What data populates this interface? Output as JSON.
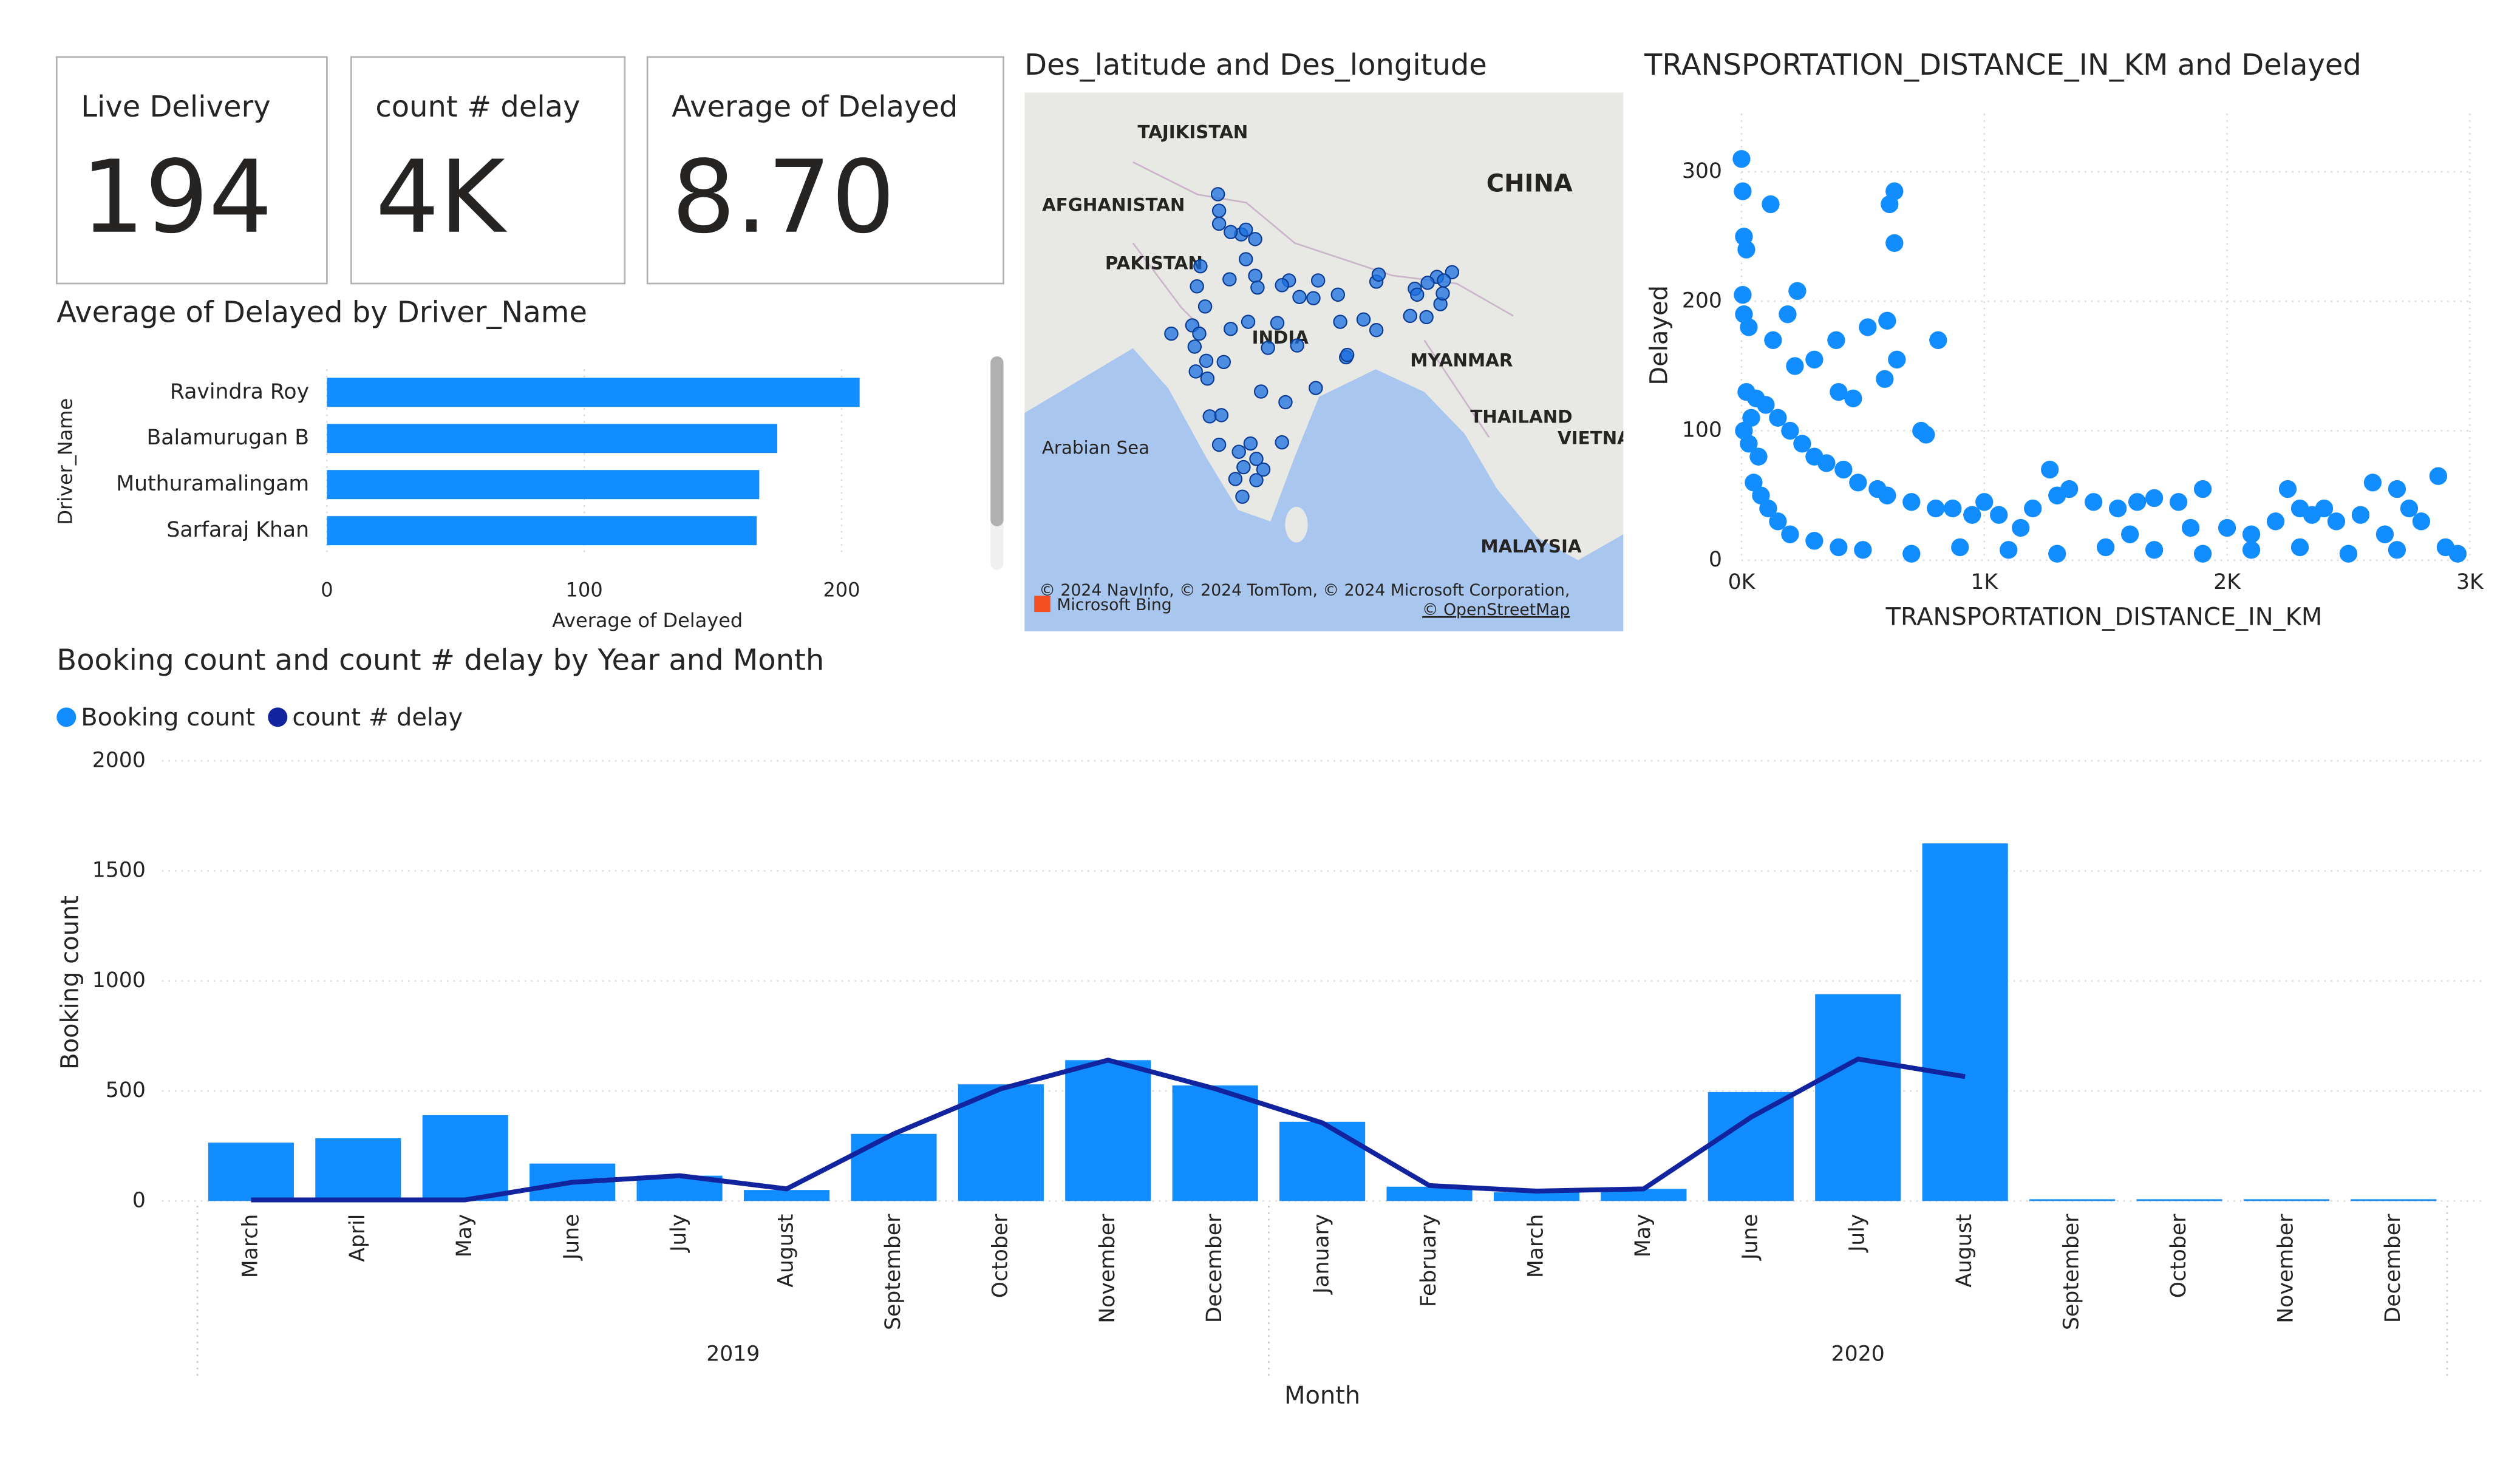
{
  "cards": [
    {
      "label": "Live Delivery",
      "value": "194"
    },
    {
      "label": "count # delay",
      "value": "4K"
    },
    {
      "label": "Average of Delayed",
      "value": "8.70"
    }
  ],
  "chart_data": [
    {
      "type": "hbar",
      "title": "Average of Delayed by Driver_Name",
      "categories": [
        "Ravindra Roy",
        "Balamurugan B",
        "Muthuramalingam",
        "Sarfaraj Khan"
      ],
      "values": [
        207,
        175,
        168,
        167
      ],
      "color": "#118dff",
      "xlabel": "Average of Delayed",
      "ylabel": "Driver_Name",
      "xlim": [
        0,
        245
      ],
      "xticks": [
        0,
        100,
        200
      ],
      "grid": true
    },
    {
      "type": "map",
      "title": "Des_latitude and Des_longitude",
      "x": [
        77.2,
        75.8,
        80.9,
        80.3,
        78.0,
        76.8,
        74.9,
        75.9,
        78.0,
        77.2,
        74.8,
        74.9,
        72.6,
        72.8,
        73.2,
        70.8,
        72.9,
        73.9,
        79.1,
        73.8,
        75.3,
        75.9,
        77.4,
        79.9,
        81.6,
        85.1,
        85.3,
        88.4,
        85.8,
        91.7,
        91.9,
        93.9,
        91.3,
        88.4,
        94.9,
        78.5,
        80.6,
        83.2,
        77.6,
        80.3,
        77.0,
        78.1,
        76.3,
        76.9,
        74.9,
        74.1,
        75.1,
        76.6,
        78.1,
        78.7,
        83.0,
        83.4,
        81.8,
        78.2,
        73.0,
        73.7,
        73.3,
        87.3,
        85.9,
        88.6,
        93.6,
        94.1,
        92.7,
        94.2,
        92.8
      ],
      "y": [
        28.6,
        26.9,
        26.8,
        26.4,
        27.2,
        30.7,
        31.6,
        30.9,
        30.3,
        31.1,
        34.1,
        32.7,
        23.0,
        21.2,
        22.3,
        22.3,
        19.1,
        18.5,
        21.1,
        20.0,
        19.9,
        22.7,
        23.3,
        23.2,
        21.3,
        25.6,
        23.3,
        22.6,
        20.3,
        26.1,
        25.6,
        24.8,
        23.8,
        26.7,
        27.5,
        17.4,
        16.5,
        17.7,
        13.0,
        13.1,
        11.0,
        9.9,
        10.0,
        8.5,
        12.9,
        15.3,
        15.4,
        12.3,
        11.7,
        10.8,
        25.3,
        26.8,
        25.4,
        26.2,
        26.3,
        24.6,
        28.0,
        23.5,
        20.5,
        27.3,
        27.1,
        25.7,
        23.7,
        26.8,
        26.6
      ],
      "color": "#1a6fe0",
      "xlim": [
        58.2,
        109.6
      ],
      "ylim": [
        -2.9,
        42.7
      ],
      "labels": [
        "TAJIKISTAN",
        "AFGHANISTAN",
        "PAKISTAN",
        "CHINA",
        "INDIA",
        "MYANMAR",
        "THAILAND",
        "VIETNA",
        "Arabian Sea",
        "MALAYSIA"
      ],
      "attribution": "© 2024 NavInfo, © 2024 TomTom, © 2024 Microsoft Corporation,",
      "osm": "© OpenStreetMap",
      "provider": "Microsoft Bing"
    },
    {
      "type": "scatter",
      "title": "TRANSPORTATION_DISTANCE_IN_KM and Delayed",
      "xlabel": "TRANSPORTATION_DISTANCE_IN_KM",
      "ylabel": "Delayed",
      "color": "#118dff",
      "x": [
        0,
        5,
        10,
        20,
        120,
        610,
        630,
        630,
        5,
        10,
        30,
        230,
        190,
        130,
        520,
        810,
        600,
        390,
        640,
        740,
        760,
        300,
        220,
        400,
        460,
        590,
        20,
        60,
        100,
        150,
        200,
        250,
        300,
        350,
        420,
        480,
        560,
        600,
        700,
        800,
        870,
        950,
        1000,
        1060,
        1200,
        1270,
        1300,
        1350,
        1450,
        1550,
        1630,
        1700,
        1800,
        1900,
        2000,
        2100,
        2200,
        2250,
        2300,
        2350,
        2400,
        2450,
        2550,
        2600,
        2700,
        2750,
        2800,
        2870,
        2900,
        2950,
        50,
        80,
        110,
        150,
        200,
        300,
        400,
        500,
        700,
        900,
        1100,
        1300,
        1500,
        1700,
        1900,
        2100,
        2300,
        2500,
        2700,
        30,
        70,
        10,
        40,
        1150,
        1600,
        2650,
        1850
      ],
      "y": [
        310,
        285,
        250,
        240,
        275,
        275,
        285,
        245,
        205,
        190,
        180,
        208,
        190,
        170,
        180,
        170,
        185,
        170,
        155,
        100,
        97,
        155,
        150,
        130,
        125,
        140,
        130,
        125,
        120,
        110,
        100,
        90,
        80,
        75,
        70,
        60,
        55,
        50,
        45,
        40,
        40,
        35,
        45,
        35,
        40,
        70,
        50,
        55,
        45,
        40,
        45,
        48,
        45,
        55,
        25,
        20,
        30,
        55,
        40,
        35,
        40,
        30,
        35,
        60,
        55,
        40,
        30,
        65,
        10,
        5,
        60,
        50,
        40,
        30,
        20,
        15,
        10,
        8,
        5,
        10,
        8,
        5,
        10,
        8,
        5,
        8,
        10,
        5,
        8,
        90,
        80,
        100,
        110,
        25,
        20,
        20,
        25
      ],
      "xlim": [
        0,
        3000
      ],
      "ylim": [
        0,
        345
      ],
      "xticks": [
        {
          "value": 0,
          "label": "0K"
        },
        {
          "value": 1000,
          "label": "1K"
        },
        {
          "value": 2000,
          "label": "2K"
        },
        {
          "value": 3000,
          "label": "3K"
        }
      ],
      "yticks": [
        0,
        100,
        200,
        300
      ],
      "grid": true
    },
    {
      "type": "combo",
      "title": "Booking count and count # delay by Year and Month",
      "xlabel": "Month",
      "ylabel": "Booking count",
      "categories": [
        "March",
        "April",
        "May",
        "June",
        "July",
        "August",
        "September",
        "October",
        "November",
        "December",
        "January",
        "February",
        "March",
        "May",
        "June",
        "July",
        "August",
        "September",
        "October",
        "November",
        "December"
      ],
      "years": [
        "2019",
        "2019",
        "2019",
        "2019",
        "2019",
        "2019",
        "2019",
        "2019",
        "2019",
        "2019",
        "2020",
        "2020",
        "2020",
        "2020",
        "2020",
        "2020",
        "2020",
        "2020",
        "2020",
        "2020",
        "2020"
      ],
      "series": [
        {
          "name": "Booking count",
          "color": "#118dff",
          "values": [
            265,
            285,
            390,
            170,
            115,
            50,
            305,
            530,
            640,
            525,
            360,
            65,
            40,
            55,
            495,
            940,
            1625,
            8,
            8,
            8,
            8
          ]
        },
        {
          "name": "count # delay",
          "color": "#12239e",
          "values": [
            5,
            5,
            5,
            85,
            115,
            55,
            305,
            510,
            640,
            510,
            355,
            70,
            45,
            55,
            380,
            645,
            565,
            null,
            null,
            null,
            null
          ]
        }
      ],
      "ylim": [
        0,
        2000
      ],
      "yticks": [
        0,
        500,
        1000,
        1500,
        2000
      ],
      "grid": true
    }
  ]
}
